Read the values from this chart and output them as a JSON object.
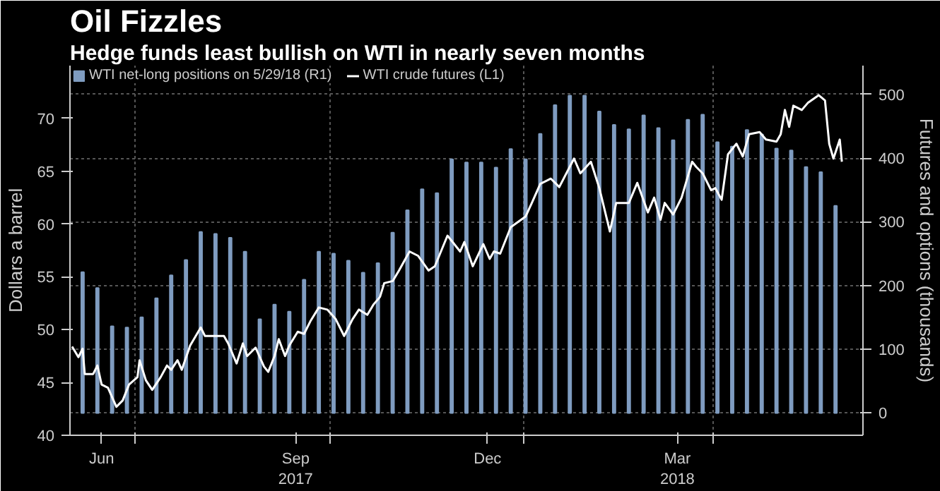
{
  "chart_data": {
    "type": "bar",
    "title": "Oil Fizzles",
    "subtitle": "Hedge funds least bullish on WTI in nearly seven months",
    "ylabel": "Dollars a barrel",
    "y2label": "Futures and options (thousands)",
    "xlim": [
      "2017-05-31",
      "2018-06-11"
    ],
    "xticks": [
      {
        "value": "2017-06-15",
        "label": "Jun"
      },
      {
        "value": "2017-07-01",
        "label": null
      },
      {
        "value": "2017-09-15",
        "label": "Sep\n2017"
      },
      {
        "value": "2017-10-01",
        "label": null
      },
      {
        "value": "2017-12-15",
        "label": "Dec"
      },
      {
        "value": "2018-01-01",
        "label": null
      },
      {
        "value": "2018-03-15",
        "label": "Mar\n2018"
      },
      {
        "value": "2018-04-01",
        "label": null
      }
    ],
    "ylim": [
      40,
      75
    ],
    "yticks": [
      40,
      45,
      50,
      55,
      60,
      65,
      70
    ],
    "y2lim": [
      -35,
      545
    ],
    "y2ticks": [
      0,
      100,
      200,
      300,
      400,
      500
    ],
    "grid": true,
    "legend": "top left",
    "series": [
      {
        "name": "WTI net-long positions on 5/29/18 (R1)",
        "axis": "y2",
        "color": "#7f9cc0",
        "x": [
          "2017-06-06",
          "2017-06-13",
          "2017-06-20",
          "2017-06-27",
          "2017-07-04",
          "2017-07-11",
          "2017-07-18",
          "2017-07-25",
          "2017-08-01",
          "2017-08-08",
          "2017-08-15",
          "2017-08-22",
          "2017-08-29",
          "2017-09-05",
          "2017-09-12",
          "2017-09-19",
          "2017-09-26",
          "2017-10-03",
          "2017-10-10",
          "2017-10-17",
          "2017-10-24",
          "2017-10-31",
          "2017-11-07",
          "2017-11-14",
          "2017-11-21",
          "2017-11-28",
          "2017-12-05",
          "2017-12-12",
          "2017-12-19",
          "2017-12-26",
          "2018-01-02",
          "2018-01-09",
          "2018-01-16",
          "2018-01-23",
          "2018-01-30",
          "2018-02-06",
          "2018-02-13",
          "2018-02-20",
          "2018-02-27",
          "2018-03-06",
          "2018-03-13",
          "2018-03-20",
          "2018-03-27",
          "2018-04-03",
          "2018-04-10",
          "2018-04-17",
          "2018-04-24",
          "2018-05-01",
          "2018-05-08",
          "2018-05-15",
          "2018-05-22",
          "2018-05-29"
        ],
        "values": [
          221,
          196,
          136,
          134,
          150,
          180,
          216,
          240,
          284,
          281,
          275,
          253,
          147,
          170,
          159,
          209,
          253,
          250,
          239,
          220,
          235,
          283,
          318,
          351,
          345,
          398,
          393,
          393,
          385,
          414,
          398,
          438,
          483,
          498,
          498,
          473,
          452,
          445,
          467,
          447,
          428,
          460,
          468,
          425,
          418,
          444,
          437,
          415,
          412,
          386,
          378,
          325
        ]
      },
      {
        "name": "WTI crude futures (L1)",
        "type": "line",
        "axis": "y",
        "color": "#ffffff",
        "x": [
          "2017-06-01",
          "2017-06-04",
          "2017-06-06",
          "2017-06-07",
          "2017-06-11",
          "2017-06-13",
          "2017-06-15",
          "2017-06-18",
          "2017-06-22",
          "2017-06-25",
          "2017-06-28",
          "2017-07-02",
          "2017-07-03",
          "2017-07-06",
          "2017-07-09",
          "2017-07-13",
          "2017-07-16",
          "2017-07-18",
          "2017-07-21",
          "2017-07-23",
          "2017-07-27",
          "2017-08-01",
          "2017-08-03",
          "2017-08-07",
          "2017-08-12",
          "2017-08-14",
          "2017-08-18",
          "2017-08-21",
          "2017-08-23",
          "2017-08-27",
          "2017-08-31",
          "2017-09-02",
          "2017-09-05",
          "2017-09-07",
          "2017-09-10",
          "2017-09-12",
          "2017-09-16",
          "2017-09-19",
          "2017-09-22",
          "2017-09-26",
          "2017-09-30",
          "2017-10-04",
          "2017-10-08",
          "2017-10-12",
          "2017-10-15",
          "2017-10-19",
          "2017-10-22",
          "2017-10-25",
          "2017-10-27",
          "2017-10-31",
          "2017-11-03",
          "2017-11-08",
          "2017-11-12",
          "2017-11-17",
          "2017-11-20",
          "2017-11-26",
          "2017-12-02",
          "2017-12-04",
          "2017-12-08",
          "2017-12-13",
          "2017-12-16",
          "2017-12-18",
          "2017-12-21",
          "2017-12-26",
          "2018-01-02",
          "2018-01-05",
          "2018-01-09",
          "2018-01-14",
          "2018-01-18",
          "2018-01-25",
          "2018-01-28",
          "2018-02-02",
          "2018-02-06",
          "2018-02-11",
          "2018-02-14",
          "2018-02-20",
          "2018-02-24",
          "2018-03-01",
          "2018-03-04",
          "2018-03-07",
          "2018-03-09",
          "2018-03-13",
          "2018-03-17",
          "2018-03-22",
          "2018-03-24",
          "2018-03-27",
          "2018-03-31",
          "2018-04-02",
          "2018-04-05",
          "2018-04-08",
          "2018-04-12",
          "2018-04-15",
          "2018-04-18",
          "2018-04-23",
          "2018-04-26",
          "2018-05-01",
          "2018-05-03",
          "2018-05-05",
          "2018-05-07",
          "2018-05-09",
          "2018-05-13",
          "2018-05-16",
          "2018-05-21",
          "2018-05-24",
          "2018-05-26",
          "2018-05-28",
          "2018-05-31",
          "2018-06-01"
        ],
        "values": [
          48.4,
          47.4,
          48.2,
          45.8,
          45.8,
          46.6,
          44.8,
          44.5,
          42.7,
          43.3,
          44.8,
          45.5,
          47.1,
          45.2,
          44.3,
          45.5,
          46.6,
          46.2,
          47.1,
          46.2,
          48.5,
          50.2,
          49.4,
          49.4,
          49.4,
          48.7,
          46.8,
          48.7,
          47.5,
          48.3,
          46.5,
          46.0,
          47.5,
          49.1,
          47.5,
          48.5,
          49.8,
          49.6,
          50.8,
          52.1,
          51.9,
          51.0,
          49.4,
          51.0,
          51.9,
          51.4,
          52.4,
          53.1,
          54.4,
          54.6,
          55.6,
          57.4,
          57.0,
          55.6,
          56.0,
          58.9,
          57.4,
          58.3,
          56.0,
          58.1,
          56.7,
          57.4,
          57.2,
          59.7,
          60.7,
          62.0,
          63.8,
          64.3,
          63.5,
          66.2,
          64.8,
          65.9,
          63.4,
          59.3,
          62.0,
          62.0,
          63.9,
          61.1,
          62.5,
          60.4,
          62.0,
          60.9,
          62.5,
          65.9,
          65.4,
          64.8,
          63.2,
          63.4,
          62.3,
          66.6,
          67.6,
          66.4,
          68.5,
          68.7,
          68.0,
          67.8,
          68.5,
          70.8,
          69.2,
          71.2,
          70.8,
          71.5,
          72.2,
          71.7,
          67.6,
          66.2,
          68.0,
          65.9
        ]
      }
    ]
  }
}
